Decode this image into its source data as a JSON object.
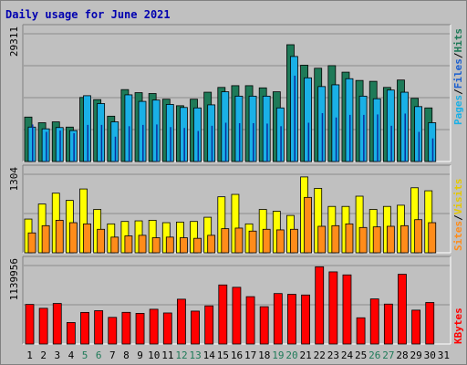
{
  "title": "Daily usage for June 2021",
  "colors": {
    "background": "#c0c0c0",
    "panel": "#c0c0c0",
    "grid": "#8c8c8c",
    "hits": "#1e7a58",
    "files": "#1ab0e6",
    "pages": "#0a2f9e",
    "visits": "#ffff00",
    "sites": "#ff8c1a",
    "kbytes": "#ff0000",
    "weekend_label": "#1e7a58",
    "weekday_label": "#000000",
    "title": "#0000b0"
  },
  "y_labels": {
    "top_max": "29311",
    "middle_max": "1304",
    "bottom_max": "1139956"
  },
  "right_labels": {
    "top": [
      {
        "text": "Hits",
        "color": "#1e7a58"
      },
      {
        "text": "/",
        "color": "#000000"
      },
      {
        "text": "Files",
        "color": "#1a5fd0"
      },
      {
        "text": "/",
        "color": "#000000"
      },
      {
        "text": "Pages",
        "color": "#1ab0e6"
      }
    ],
    "middle": [
      {
        "text": "Visits",
        "color": "#e6c800"
      },
      {
        "text": "/",
        "color": "#000000"
      },
      {
        "text": "Sites",
        "color": "#ff8c1a"
      }
    ],
    "bottom": [
      {
        "text": "KBytes",
        "color": "#ff0000"
      }
    ]
  },
  "chart_data": {
    "type": "bar",
    "title": "Daily usage for June 2021",
    "categories": [
      "1",
      "2",
      "3",
      "4",
      "5",
      "6",
      "7",
      "8",
      "9",
      "10",
      "11",
      "12",
      "13",
      "14",
      "15",
      "16",
      "17",
      "18",
      "19",
      "20",
      "21",
      "22",
      "23",
      "24",
      "25",
      "26",
      "27",
      "28",
      "29",
      "30",
      "31"
    ],
    "weekend_days": [
      "5",
      "6",
      "12",
      "13",
      "19",
      "20",
      "26",
      "27"
    ],
    "panels": [
      {
        "name": "hits-files-pages",
        "ylim": [
          0,
          29311
        ],
        "series": [
          {
            "name": "Hits",
            "values": [
              10200,
              8900,
              9100,
              7900,
              14700,
              14200,
              10400,
              16500,
              15800,
              15600,
              14300,
              12800,
              14300,
              15900,
              17000,
              17400,
              17400,
              16900,
              16000,
              26800,
              22100,
              21400,
              22000,
              20500,
              18600,
              18400,
              17000,
              18700,
              14500,
              12300,
              0
            ]
          },
          {
            "name": "Files",
            "values": [
              7900,
              7500,
              7800,
              7100,
              15100,
              13300,
              9100,
              15300,
              13800,
              14100,
              13100,
              12400,
              12300,
              13000,
              16000,
              15000,
              15000,
              15000,
              12300,
              24100,
              19200,
              17200,
              17600,
              19000,
              15000,
              14400,
              16400,
              15900,
              12600,
              8900,
              0
            ]
          },
          {
            "name": "Pages",
            "values": [
              8500,
              6800,
              7100,
              6500,
              8400,
              8400,
              5700,
              8100,
              8400,
              8500,
              7900,
              7700,
              7000,
              8200,
              8900,
              8800,
              8800,
              8700,
              8100,
              19700,
              8900,
              11100,
              10100,
              10700,
              10700,
              10800,
              8200,
              11000,
              6800,
              5300,
              0
            ]
          }
        ]
      },
      {
        "name": "visits-sites",
        "ylim": [
          0,
          1304
        ],
        "series": [
          {
            "name": "Visits",
            "values": [
              560,
              810,
              990,
              870,
              1060,
              720,
              480,
              520,
              530,
              540,
              500,
              510,
              520,
              590,
              930,
              970,
              480,
              720,
              690,
              620,
              1260,
              1070,
              770,
              770,
              940,
              720,
              770,
              790,
              1080,
              1030,
              0
            ]
          },
          {
            "name": "Sites",
            "values": [
              330,
              450,
              540,
              500,
              480,
              390,
              260,
              280,
              290,
              250,
              260,
              250,
              240,
              290,
              400,
              410,
              360,
              390,
              380,
              390,
              920,
              440,
              450,
              480,
              420,
              430,
              440,
              450,
              550,
              500,
              0
            ]
          }
        ]
      },
      {
        "name": "kbytes",
        "ylim": [
          0,
          1139956
        ],
        "series": [
          {
            "name": "KBytes",
            "values": [
              575000,
              519000,
              589000,
              312000,
              459000,
              484000,
              387000,
              460000,
              445000,
              505000,
              451000,
              651000,
              478000,
              554000,
              858000,
              824000,
              688000,
              542000,
              733000,
              722000,
              712000,
              1122000,
              1048000,
              1004000,
              381000,
              655000,
              580000,
              1013000,
              492000,
              603000,
              0
            ]
          }
        ]
      }
    ]
  }
}
